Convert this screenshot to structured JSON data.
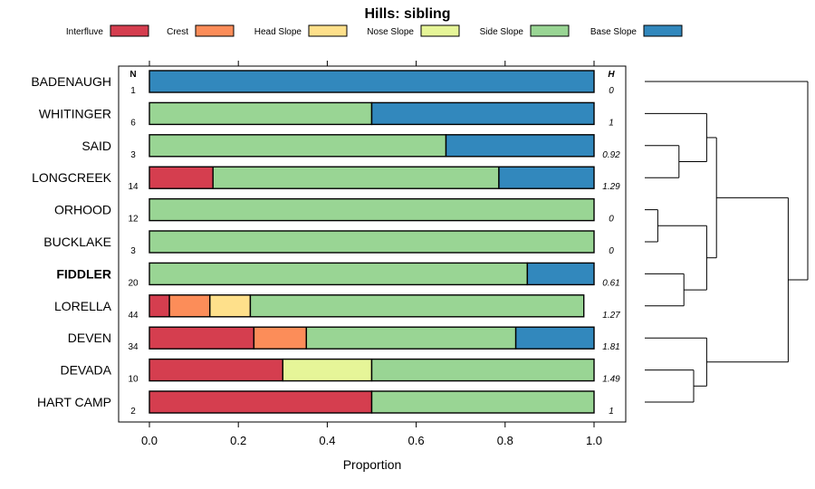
{
  "chart_data": {
    "type": "bar",
    "subtype": "stacked-horizontal-proportion",
    "title": "Hills: sibling",
    "xlabel": "Proportion",
    "ylabel": "",
    "xlim": [
      0,
      1
    ],
    "x_ticks": [
      "0.0",
      "0.2",
      "0.4",
      "0.6",
      "0.8",
      "1.0"
    ],
    "x_tick_values": [
      0,
      0.2,
      0.4,
      0.6,
      0.8,
      1.0
    ],
    "n_header": "N",
    "h_header": "H",
    "legend_position": "top",
    "legend": [
      {
        "name": "Interfluve",
        "color": "#d53e4f"
      },
      {
        "name": "Crest",
        "color": "#fc8d59"
      },
      {
        "name": "Head Slope",
        "color": "#fee08b"
      },
      {
        "name": "Nose Slope",
        "color": "#e6f598"
      },
      {
        "name": "Side Slope",
        "color": "#99d594"
      },
      {
        "name": "Base Slope",
        "color": "#3288bd"
      }
    ],
    "series_order": [
      "Interfluve",
      "Crest",
      "Head Slope",
      "Nose Slope",
      "Side Slope",
      "Base Slope"
    ],
    "highlighted": "FIDDLER",
    "rows": [
      {
        "name": "BADENAUGH",
        "n": "1",
        "h": "0",
        "values": [
          0,
          0,
          0,
          0,
          0,
          1.0
        ]
      },
      {
        "name": "WHITINGER",
        "n": "6",
        "h": "1",
        "values": [
          0,
          0,
          0,
          0,
          0.5,
          0.5
        ]
      },
      {
        "name": "SAID",
        "n": "3",
        "h": "0.92",
        "values": [
          0,
          0,
          0,
          0,
          0.667,
          0.333
        ]
      },
      {
        "name": "LONGCREEK",
        "n": "14",
        "h": "1.29",
        "values": [
          0.143,
          0,
          0,
          0,
          0.643,
          0.214
        ]
      },
      {
        "name": "ORHOOD",
        "n": "12",
        "h": "0",
        "values": [
          0,
          0,
          0,
          0,
          1.0,
          0
        ]
      },
      {
        "name": "BUCKLAKE",
        "n": "3",
        "h": "0",
        "values": [
          0,
          0,
          0,
          0,
          1.0,
          0
        ]
      },
      {
        "name": "FIDDLER",
        "n": "20",
        "h": "0.61",
        "values": [
          0,
          0,
          0,
          0,
          0.85,
          0.15
        ]
      },
      {
        "name": "LORELLA",
        "n": "44",
        "h": "1.27",
        "values": [
          0.045,
          0.091,
          0.091,
          0,
          0.75,
          0
        ]
      },
      {
        "name": "DEVEN",
        "n": "34",
        "h": "1.81",
        "values": [
          0.235,
          0.118,
          0,
          0,
          0.471,
          0.176
        ]
      },
      {
        "name": "DEVADA",
        "n": "10",
        "h": "1.49",
        "values": [
          0.3,
          0,
          0,
          0.2,
          0.5,
          0
        ]
      },
      {
        "name": "HART CAMP",
        "n": "2",
        "h": "1",
        "values": [
          0.5,
          0,
          0,
          0,
          0.5,
          0
        ]
      }
    ],
    "dendrogram": {
      "leaf_order": [
        "BADENAUGH",
        "WHITINGER",
        "SAID",
        "LONGCREEK",
        "ORHOOD",
        "BUCKLAKE",
        "FIDDLER",
        "LORELLA",
        "DEVEN",
        "DEVADA",
        "HART CAMP"
      ],
      "merges": [
        {
          "a": "L4",
          "b": "L5",
          "height": 0.08
        },
        {
          "a": "L9",
          "b": "L10",
          "height": 0.3
        },
        {
          "a": "L2",
          "b": "L3",
          "height": 0.21
        },
        {
          "a": "L6",
          "b": "L7",
          "height": 0.24
        },
        {
          "a": "M2",
          "b": "L1",
          "height": 0.38
        },
        {
          "a": "M0",
          "b": "M3",
          "height": 0.38
        },
        {
          "a": "L8",
          "b": "M1",
          "height": 0.38
        },
        {
          "a": "M4",
          "b": "M5",
          "height": 0.44
        },
        {
          "a": "M7",
          "b": "M6",
          "height": 0.88
        },
        {
          "a": "L0",
          "b": "M8",
          "height": 1.0
        }
      ]
    }
  }
}
